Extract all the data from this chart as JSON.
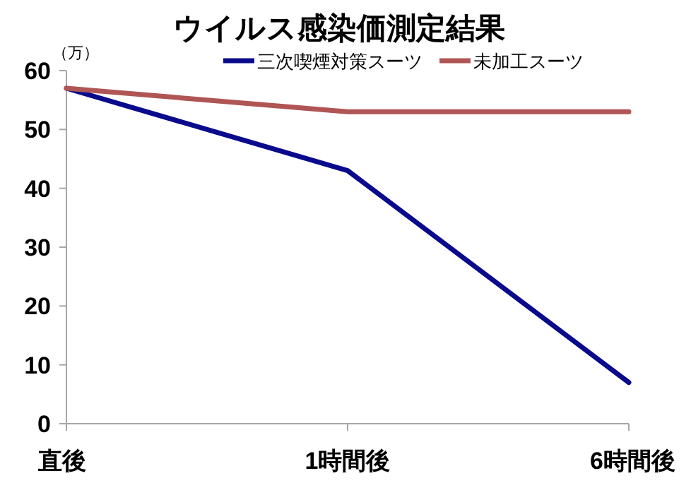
{
  "chart_data": {
    "type": "line",
    "title": "ウイルス感染価測定結果",
    "ylabel": "（万）",
    "categories": [
      "直後",
      "1時間後",
      "6時間後"
    ],
    "series": [
      {
        "name": "三次喫煙対策スーツ",
        "color": "#0a0a8c",
        "values": [
          57,
          43,
          7
        ]
      },
      {
        "name": "未加工スーツ",
        "color": "#b05555",
        "values": [
          57,
          53,
          53
        ]
      }
    ],
    "ylim": [
      0,
      60
    ],
    "yticks": [
      0,
      10,
      20,
      30,
      40,
      50,
      60
    ],
    "grid": false,
    "legend": "top right",
    "marker": "none",
    "line_style": "solid"
  }
}
